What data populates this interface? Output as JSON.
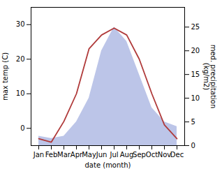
{
  "chart_data": {
    "type": "line",
    "categories": [
      "Jan",
      "Feb",
      "Mar",
      "Apr",
      "May",
      "Jun",
      "Jul",
      "Aug",
      "Sep",
      "Oct",
      "Nov",
      "Dec"
    ],
    "xlabel": "date (month)",
    "ylabel": "max temp (C)",
    "y2label": "med. precipitation\n(kg/m2)",
    "series": [
      {
        "type": "area",
        "axis": "y2",
        "color": "#bcc5e8",
        "values": [
          2,
          1.5,
          2,
          5,
          10,
          20,
          25,
          22,
          15,
          8,
          5,
          4
        ]
      },
      {
        "type": "line",
        "axis": "y",
        "color": "#b03a3a",
        "values": [
          -3,
          -4,
          2,
          10,
          23,
          27,
          29,
          27,
          20,
          10,
          1,
          -3
        ]
      }
    ],
    "ylim": [
      -5,
      35
    ],
    "yticks": [
      0,
      10,
      20,
      30
    ],
    "y2lim": [
      0,
      29.166
    ],
    "y2ticks": [
      0,
      5,
      10,
      15,
      20,
      25
    ]
  }
}
